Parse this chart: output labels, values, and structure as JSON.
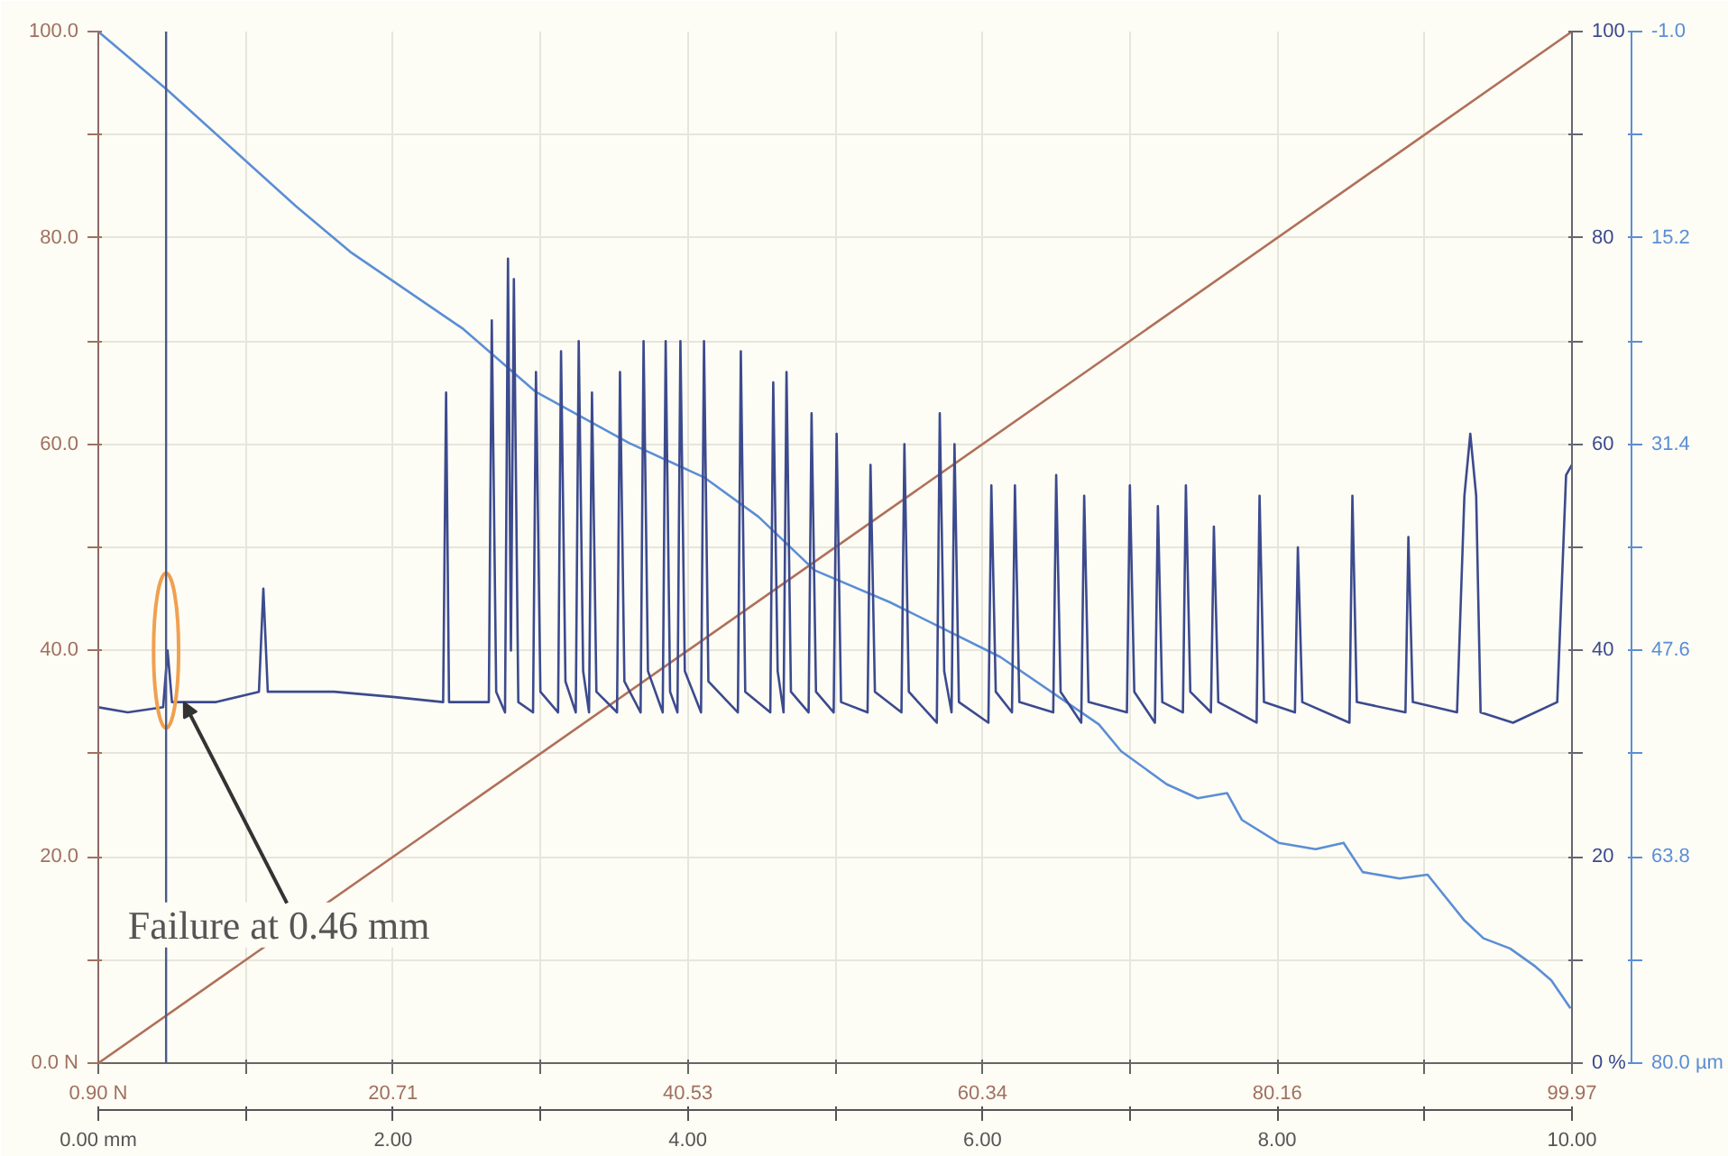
{
  "chart_data": {
    "type": "line",
    "xlim": [
      0,
      10
    ],
    "xticks": [
      {
        "value": 0,
        "label": "0.00 mm"
      },
      {
        "value": 1,
        "label": null
      },
      {
        "value": 2,
        "label": "2.00"
      },
      {
        "value": 3,
        "label": null
      },
      {
        "value": 4,
        "label": "4.00"
      },
      {
        "value": 5,
        "label": null
      },
      {
        "value": 6,
        "label": "6.00"
      },
      {
        "value": 7,
        "label": null
      },
      {
        "value": 8,
        "label": "8.00"
      },
      {
        "value": 9,
        "label": null
      },
      {
        "value": 10,
        "label": "10.00"
      }
    ],
    "x2lim": [
      0.9,
      99.97
    ],
    "x2ticks": [
      {
        "value": 0.9,
        "label": "0.90 N"
      },
      {
        "value": 10.81,
        "label": null
      },
      {
        "value": 20.71,
        "label": "20.71"
      },
      {
        "value": 30.62,
        "label": null
      },
      {
        "value": 40.53,
        "label": "40.53"
      },
      {
        "value": 50.44,
        "label": null
      },
      {
        "value": 60.34,
        "label": "60.34"
      },
      {
        "value": 70.25,
        "label": null
      },
      {
        "value": 80.16,
        "label": "80.16"
      },
      {
        "value": 90.07,
        "label": null
      },
      {
        "value": 99.97,
        "label": "99.97"
      }
    ],
    "ylim": [
      0,
      100
    ],
    "yticks": [
      {
        "value": 0,
        "label": "0.0 N"
      },
      {
        "value": 10,
        "label": null
      },
      {
        "value": 20,
        "label": "20.0"
      },
      {
        "value": 30,
        "label": null
      },
      {
        "value": 40,
        "label": "40.0"
      },
      {
        "value": 50,
        "label": null
      },
      {
        "value": 60,
        "label": "60.0"
      },
      {
        "value": 70,
        "label": null
      },
      {
        "value": 80,
        "label": "80.0"
      },
      {
        "value": 90,
        "label": null
      },
      {
        "value": 100,
        "label": "100.0"
      }
    ],
    "y2lim": [
      0,
      100
    ],
    "y2ticks": [
      {
        "value": 0,
        "label": "0 %"
      },
      {
        "value": 10,
        "label": null
      },
      20,
      {
        "value": 30,
        "label": null
      },
      40,
      {
        "value": 50,
        "label": null
      },
      60,
      {
        "value": 70,
        "label": null
      },
      80,
      {
        "value": 90,
        "label": null
      },
      100
    ],
    "y3lim": [
      80.0,
      -1.0
    ],
    "y3ticks": [
      {
        "value": -1.0,
        "label": "-1.0"
      },
      {
        "value": 7.1,
        "label": null
      },
      {
        "value": 15.2,
        "label": "15.2"
      },
      {
        "value": 23.3,
        "label": null
      },
      {
        "value": 31.4,
        "label": "31.4"
      },
      {
        "value": 39.5,
        "label": null
      },
      {
        "value": 47.6,
        "label": "47.6"
      },
      {
        "value": 55.7,
        "label": null
      },
      {
        "value": 63.8,
        "label": "63.8"
      },
      {
        "value": 71.9,
        "label": null
      },
      {
        "value": 80.0,
        "label": "80.0 µm"
      }
    ],
    "grid": true,
    "series": [
      {
        "color": "#b0705a",
        "axis": "y2",
        "x": [
          0,
          10
        ],
        "values": [
          0,
          100
        ]
      },
      {
        "color": "#5b8ed6",
        "axis": "y3",
        "x": [
          0.0,
          0.47,
          1.34,
          1.71,
          2.47,
          2.97,
          3.6,
          4.11,
          4.48,
          4.86,
          5.37,
          6.12,
          6.79,
          6.94,
          7.25,
          7.46,
          7.66,
          7.76,
          8.01,
          8.26,
          8.45,
          8.58,
          8.83,
          9.02,
          9.27,
          9.4,
          9.58,
          9.75,
          9.86,
          9.99
        ],
        "values": [
          -1.0,
          3.6,
          12.7,
          16.3,
          22.3,
          27.3,
          31.3,
          34.0,
          37.1,
          41.3,
          43.8,
          48.1,
          53.4,
          55.5,
          58.1,
          59.2,
          58.8,
          60.9,
          62.7,
          63.2,
          62.7,
          65.0,
          65.5,
          65.2,
          68.8,
          70.2,
          71.0,
          72.4,
          73.5,
          75.7
        ]
      },
      {
        "color": "#3c4a8e",
        "x": [
          0,
          0.2,
          0.44,
          0.47,
          0.5,
          0.8,
          1.09,
          1.12,
          1.15,
          1.6,
          2.0,
          2.34,
          2.36,
          2.38,
          2.65,
          2.67,
          2.7,
          2.76,
          2.78,
          2.8,
          2.82,
          2.85,
          2.95,
          2.97,
          3.0,
          3.12,
          3.14,
          3.17,
          3.24,
          3.26,
          3.29,
          3.33,
          3.35,
          3.38,
          3.52,
          3.54,
          3.57,
          3.68,
          3.7,
          3.73,
          3.83,
          3.85,
          3.88,
          3.93,
          3.95,
          3.98,
          4.09,
          4.11,
          4.14,
          4.34,
          4.36,
          4.39,
          4.56,
          4.58,
          4.61,
          4.65,
          4.67,
          4.7,
          4.82,
          4.84,
          4.87,
          4.99,
          5.01,
          5.04,
          5.22,
          5.24,
          5.27,
          5.45,
          5.47,
          5.5,
          5.69,
          5.71,
          5.74,
          5.79,
          5.81,
          5.84,
          6.04,
          6.06,
          6.09,
          6.2,
          6.22,
          6.25,
          6.48,
          6.5,
          6.53,
          6.67,
          6.69,
          6.72,
          6.98,
          7.0,
          7.03,
          7.17,
          7.19,
          7.22,
          7.36,
          7.38,
          7.41,
          7.55,
          7.57,
          7.6,
          7.86,
          7.88,
          7.91,
          8.12,
          8.14,
          8.17,
          8.49,
          8.51,
          8.54,
          8.87,
          8.89,
          8.92,
          9.22,
          9.27,
          9.31,
          9.35,
          9.38,
          9.6,
          9.9,
          9.96,
          10.0
        ],
        "values": [
          34.5,
          34,
          34.5,
          40,
          35,
          35,
          36,
          46,
          36,
          36,
          35.5,
          35,
          65,
          35,
          35,
          72,
          36,
          34,
          78,
          40,
          76,
          35,
          34,
          67,
          36,
          34,
          69,
          37,
          34,
          70,
          38,
          34,
          65,
          36,
          34,
          67,
          37,
          34,
          70,
          38,
          34,
          70,
          36,
          34,
          70,
          38,
          34,
          70,
          37,
          34,
          69,
          36,
          34,
          66,
          38,
          34,
          67,
          36,
          34,
          63,
          36,
          34,
          61,
          35,
          34,
          58,
          36,
          34,
          60,
          36,
          33,
          63,
          38,
          34,
          60,
          35,
          33,
          56,
          36,
          34,
          56,
          35,
          34,
          57,
          36,
          33,
          55,
          35,
          34,
          56,
          36,
          33,
          54,
          35,
          34,
          56,
          36,
          34,
          52,
          35,
          33,
          55,
          35,
          34,
          50,
          35,
          33,
          55,
          35,
          34,
          51,
          35,
          34,
          55,
          61,
          55,
          34,
          33,
          35,
          57,
          58
        ]
      }
    ],
    "ref_lines": [
      {
        "axis": "x",
        "value": 0.46,
        "color": "#4a5a8a"
      }
    ],
    "annotations": [
      {
        "text": "Failure at 0.46 mm",
        "x": 0.58,
        "y": 35
      }
    ]
  }
}
